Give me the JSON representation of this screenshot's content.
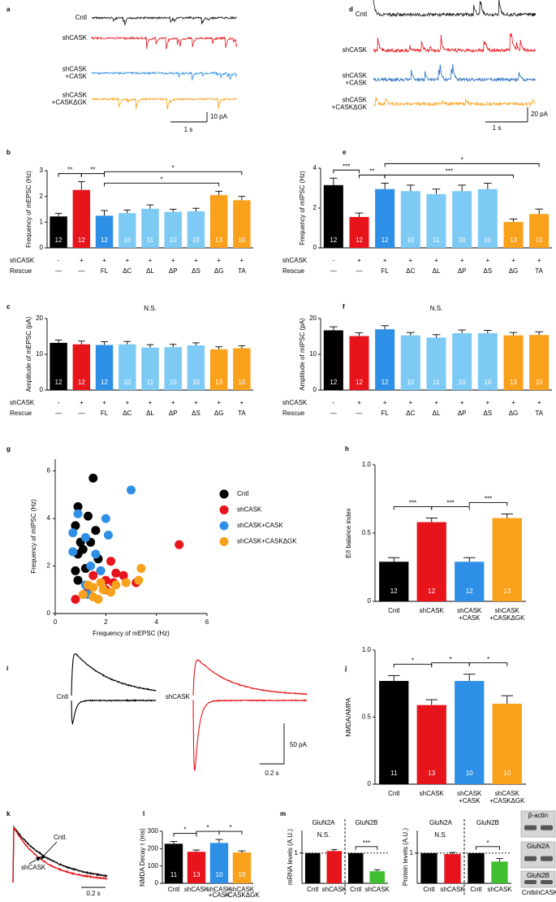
{
  "chart_data": [
    {
      "type": "traces",
      "letter": "a",
      "labels": [
        [
          "Cntl"
        ],
        [
          "shCASK"
        ],
        [
          "shCASK",
          "+CASK"
        ],
        [
          "shCASK",
          "+CASKΔGK"
        ]
      ],
      "colors": [
        "#111111",
        "#e8141c",
        "#2e8fe6",
        "#f9a11b"
      ],
      "scale_x": "1 s",
      "scale_y": "10 pA"
    },
    {
      "type": "traces",
      "letter": "d",
      "labels": [
        [
          "Cntl"
        ],
        [
          "shCASK"
        ],
        [
          "shCASK",
          "+CASK"
        ],
        [
          "shCASK",
          "+CASKΔGK"
        ]
      ],
      "colors": [
        "#111111",
        "#e8141c",
        "#2a6fbf",
        "#f9a11b"
      ],
      "scale_x": "1 s",
      "scale_y": "20 pA"
    },
    {
      "type": "bar",
      "letter": "b",
      "ylabel": "Frequency of mEPSC (Hz)",
      "ylim": [
        0,
        3
      ],
      "yticks": [
        0,
        1,
        2,
        3
      ],
      "values": [
        1.22,
        2.25,
        1.25,
        1.35,
        1.52,
        1.4,
        1.42,
        2.05,
        1.85
      ],
      "errors": [
        0.12,
        0.32,
        0.2,
        0.12,
        0.15,
        0.1,
        0.12,
        0.15,
        0.15
      ],
      "n": [
        12,
        12,
        12,
        10,
        11,
        10,
        10,
        13,
        10
      ],
      "colors": [
        "#000000",
        "#e8141c",
        "#2e8fe6",
        "#7dcaf5",
        "#7dcaf5",
        "#7dcaf5",
        "#7dcaf5",
        "#f9a11b",
        "#f9a11b"
      ],
      "rows": [
        {
          "name": "shCASK",
          "labels": [
            "-",
            "+",
            "+",
            "+",
            "+",
            "+",
            "+",
            "+",
            "+"
          ]
        },
        {
          "name": "Rescue",
          "labels": [
            "—",
            "—",
            "FL",
            "ΔC",
            "ΔL",
            "ΔP",
            "ΔS",
            "ΔG",
            "TA"
          ]
        }
      ],
      "significance": [
        {
          "from": 0,
          "to": 1,
          "label": "**"
        },
        {
          "from": 1,
          "to": 2,
          "label": "**"
        },
        {
          "from": 2,
          "to": 7,
          "label": "*"
        },
        {
          "from": 2,
          "to": 8,
          "label": "*"
        }
      ]
    },
    {
      "type": "bar",
      "letter": "c",
      "ylabel": "Amplitude of mEPSC (pA)",
      "ylim": [
        0,
        20
      ],
      "yticks": [
        0,
        10,
        20
      ],
      "annotation": "N.S.",
      "values": [
        13.2,
        12.8,
        12.6,
        12.8,
        11.9,
        12.0,
        12.5,
        11.4,
        11.7
      ],
      "errors": [
        0.8,
        0.9,
        0.9,
        0.8,
        0.8,
        0.8,
        0.7,
        0.7,
        0.7
      ],
      "n": [
        12,
        12,
        12,
        10,
        11,
        10,
        10,
        13,
        10
      ],
      "colors": [
        "#000000",
        "#e8141c",
        "#2e8fe6",
        "#7dcaf5",
        "#7dcaf5",
        "#7dcaf5",
        "#7dcaf5",
        "#f9a11b",
        "#f9a11b"
      ],
      "rows": [
        {
          "name": "shCASK",
          "labels": [
            "-",
            "+",
            "+",
            "+",
            "+",
            "+",
            "+",
            "+",
            "+"
          ]
        },
        {
          "name": "Rescue",
          "labels": [
            "—",
            "—",
            "FL",
            "ΔC",
            "ΔL",
            "ΔP",
            "ΔS",
            "ΔG",
            "TA"
          ]
        }
      ]
    },
    {
      "type": "bar",
      "letter": "e",
      "ylabel": "Frequency of mIPSC (Hz)",
      "ylim": [
        0,
        4
      ],
      "yticks": [
        0,
        2,
        4
      ],
      "values": [
        3.15,
        1.55,
        2.95,
        2.85,
        2.7,
        2.85,
        2.95,
        1.3,
        1.7
      ],
      "errors": [
        0.35,
        0.2,
        0.3,
        0.3,
        0.25,
        0.3,
        0.3,
        0.15,
        0.25
      ],
      "n": [
        12,
        12,
        12,
        10,
        11,
        10,
        10,
        13,
        10
      ],
      "colors": [
        "#000000",
        "#e8141c",
        "#2e8fe6",
        "#7dcaf5",
        "#7dcaf5",
        "#7dcaf5",
        "#7dcaf5",
        "#f9a11b",
        "#f9a11b"
      ],
      "rows": [
        {
          "name": "shCASK",
          "labels": [
            "-",
            "+",
            "+",
            "+",
            "+",
            "+",
            "+",
            "+",
            "+"
          ]
        },
        {
          "name": "Rescue",
          "labels": [
            "—",
            "—",
            "FL",
            "ΔC",
            "ΔL",
            "ΔP",
            "ΔS",
            "ΔG",
            "TA"
          ]
        }
      ],
      "significance": [
        {
          "from": 0,
          "to": 1,
          "label": "***"
        },
        {
          "from": 1,
          "to": 2,
          "label": "**"
        },
        {
          "from": 2,
          "to": 7,
          "label": "***"
        },
        {
          "from": 2,
          "to": 8,
          "label": "*"
        }
      ]
    },
    {
      "type": "bar",
      "letter": "f",
      "ylabel": "Amplitude of mIPSC (pA)",
      "ylim": [
        0,
        20
      ],
      "yticks": [
        0,
        10,
        20
      ],
      "annotation": "N.S.",
      "values": [
        16.7,
        15.1,
        17.0,
        15.3,
        14.7,
        15.9,
        15.9,
        15.3,
        15.4
      ],
      "errors": [
        1.0,
        0.9,
        1.0,
        0.8,
        0.8,
        0.9,
        0.8,
        0.8,
        0.9
      ],
      "n": [
        12,
        12,
        12,
        10,
        11,
        10,
        10,
        13,
        10
      ],
      "colors": [
        "#000000",
        "#e8141c",
        "#2e8fe6",
        "#7dcaf5",
        "#7dcaf5",
        "#7dcaf5",
        "#7dcaf5",
        "#f9a11b",
        "#f9a11b"
      ],
      "rows": [
        {
          "name": "shCASK",
          "labels": [
            "-",
            "+",
            "+",
            "+",
            "+",
            "+",
            "+",
            "+",
            "+"
          ]
        },
        {
          "name": "Rescue",
          "labels": [
            "—",
            "—",
            "FL",
            "ΔC",
            "ΔL",
            "ΔP",
            "ΔS",
            "ΔG",
            "TA"
          ]
        }
      ]
    },
    {
      "type": "scatter",
      "letter": "g",
      "xlabel": "Frequency of  mEPSC (Hz)",
      "ylabel": "Frequency of mIPSC (Hz)",
      "xlim": [
        0,
        6
      ],
      "ylim": [
        0,
        6.5
      ],
      "xticks": [
        0,
        2,
        4,
        6
      ],
      "yticks": [
        0,
        2,
        4,
        6
      ],
      "series": [
        {
          "name": "Cntl",
          "color": "#000000",
          "x": [
            1.5,
            0.9,
            1.3,
            0.8,
            1.6,
            1.4,
            1.1,
            0.9,
            1.7,
            0.8,
            1.2,
            0.9,
            1.0
          ],
          "values": [
            5.7,
            4.5,
            4.1,
            3.7,
            3.5,
            3.0,
            2.7,
            2.5,
            2.3,
            1.8,
            1.9,
            1.4,
            3.0
          ]
        },
        {
          "name": "shCASK",
          "color": "#e8141c",
          "x": [
            4.9,
            2.2,
            1.8,
            2.4,
            2.7,
            1.5,
            2.0,
            2.3,
            0.8,
            1.3,
            2.0,
            3.2
          ],
          "values": [
            2.9,
            2.2,
            1.8,
            1.7,
            1.6,
            1.6,
            1.4,
            1.3,
            0.6,
            1.0,
            1.0,
            1.3
          ]
        },
        {
          "name": "shCASK+CASK",
          "color": "#2e8fe6",
          "x": [
            3.0,
            2.0,
            0.9,
            0.7,
            1.2,
            2.1,
            0.7,
            1.4,
            1.2,
            1.3,
            1.8,
            1.6
          ],
          "values": [
            5.2,
            4.0,
            4.2,
            3.4,
            3.2,
            3.3,
            2.6,
            2.0,
            1.2,
            0.8,
            1.8,
            2.5
          ]
        },
        {
          "name": "shCASK+CASKΔGK",
          "color": "#f9a11b",
          "x": [
            3.4,
            2.4,
            1.9,
            1.5,
            1.1,
            1.8,
            2.8,
            1.3,
            1.7,
            2.2,
            3.3,
            1.5
          ],
          "values": [
            1.9,
            1.2,
            1.0,
            0.7,
            0.8,
            1.3,
            1.3,
            1.2,
            0.6,
            0.9,
            1.4,
            1.1
          ]
        }
      ]
    },
    {
      "type": "bar",
      "letter": "h",
      "ylabel": "E/I balance index",
      "ylim": [
        0,
        1
      ],
      "yticks": [
        0,
        0.5,
        {
          "value": 1,
          "label": "1.0"
        }
      ],
      "categories": [
        [
          "Cntl"
        ],
        [
          "shCASK"
        ],
        [
          "shCASK",
          "+CASK"
        ],
        [
          "shCASK",
          "+CASKΔGK"
        ]
      ],
      "values": [
        0.29,
        0.58,
        0.29,
        0.61
      ],
      "errors": [
        0.03,
        0.03,
        0.03,
        0.03
      ],
      "n": [
        12,
        12,
        12,
        13
      ],
      "colors": [
        "#000000",
        "#e8141c",
        "#2e8fe6",
        "#f9a11b"
      ],
      "significance": [
        {
          "from": 0,
          "to": 1,
          "label": "***"
        },
        {
          "from": 1,
          "to": 2,
          "label": "***"
        },
        {
          "from": 2,
          "to": 3,
          "label": "***"
        }
      ]
    },
    {
      "type": "traces",
      "letter": "i",
      "labels": [
        [
          "Cntl"
        ],
        [
          "shCASK"
        ]
      ],
      "colors": [
        "#000000",
        "#e8141c"
      ],
      "scale_x": "0.2 s",
      "scale_y": "50 pA"
    },
    {
      "type": "bar",
      "letter": "j",
      "ylabel": "NMDA/AMPA",
      "ylim": [
        0,
        1
      ],
      "yticks": [
        0,
        0.5,
        {
          "value": 1,
          "label": "1.0"
        }
      ],
      "categories": [
        [
          "Cntl"
        ],
        [
          "shCASK"
        ],
        [
          "shCASK",
          "+CASK"
        ],
        [
          "shCASK",
          "+CASKΔGK"
        ]
      ],
      "values": [
        0.77,
        0.59,
        0.77,
        0.6
      ],
      "errors": [
        0.04,
        0.04,
        0.05,
        0.06
      ],
      "n": [
        11,
        13,
        10,
        10
      ],
      "colors": [
        "#000000",
        "#e8141c",
        "#2e8fe6",
        "#f9a11b"
      ],
      "significance": [
        {
          "from": 0,
          "to": 1,
          "label": "*"
        },
        {
          "from": 1,
          "to": 2,
          "label": "*"
        },
        {
          "from": 2,
          "to": 3,
          "label": "*"
        }
      ]
    },
    {
      "type": "traces",
      "letter": "k",
      "labels": [
        [
          "Cntl."
        ],
        [
          "shCASK"
        ]
      ],
      "colors": [
        "#000000",
        "#e8141c"
      ],
      "scale_x": "0.2 s"
    },
    {
      "type": "bar",
      "letter": "l",
      "ylabel": "NMDA Decay τ (ms)",
      "ylim": [
        0,
        300
      ],
      "yticks": [
        0,
        100,
        200,
        300
      ],
      "categories": [
        [
          "Cntl"
        ],
        [
          "shCASK"
        ],
        [
          "shCASK",
          "+CASK"
        ],
        [
          "shCASK",
          "+CASKΔGK"
        ]
      ],
      "values": [
        228,
        182,
        233,
        178
      ],
      "errors": [
        13,
        10,
        20,
        9
      ],
      "n": [
        11,
        13,
        10,
        10
      ],
      "colors": [
        "#000000",
        "#e8141c",
        "#2e8fe6",
        "#f9a11b"
      ],
      "significance": [
        {
          "from": 0,
          "to": 1,
          "label": "*"
        },
        {
          "from": 1,
          "to": 2,
          "label": "*"
        },
        {
          "from": 2,
          "to": 3,
          "label": "*"
        }
      ]
    },
    {
      "type": "bar",
      "letter": "m",
      "ylabel": "mRNA levels (A.U.)",
      "ylim": [
        0,
        1.75
      ],
      "yticks": [
        1
      ],
      "reference_line": 1,
      "categories": [
        [
          "Cntl"
        ],
        [
          "shCASK"
        ],
        [
          "Cntl"
        ],
        [
          "shCASK"
        ]
      ],
      "values": [
        1,
        1.07,
        1,
        0.4
      ],
      "errors": [
        null,
        0.05,
        null,
        0.05
      ],
      "colors": [
        "#000000",
        "#e8141c",
        "#000000",
        "#3fbf2f"
      ],
      "groups": [
        {
          "name": "GluN2A",
          "label": "N.S."
        },
        {
          "name": "GluN2B",
          "label": "***",
          "bracket": true
        }
      ]
    },
    {
      "type": "bar",
      "ylabel": "Protein levels (A.U.)",
      "ylim": [
        0,
        1.75
      ],
      "yticks": [
        1
      ],
      "reference_line": 1,
      "categories": [
        [
          "Cntl"
        ],
        [
          "shCASK"
        ],
        [
          "Cntl"
        ],
        [
          "shCASK"
        ]
      ],
      "values": [
        1,
        0.97,
        1,
        0.72
      ],
      "errors": [
        null,
        0.05,
        null,
        0.1
      ],
      "colors": [
        "#000000",
        "#e8141c",
        "#000000",
        "#3fbf2f"
      ],
      "groups": [
        {
          "name": "GluN2A",
          "label": "N.S."
        },
        {
          "name": "GluN2B",
          "label": "*",
          "bracket": true
        }
      ],
      "blots": [
        "β-actin",
        "GluN2A",
        "GluN2B"
      ],
      "blot_lanes": [
        "Cntl",
        "shCASK"
      ]
    }
  ]
}
